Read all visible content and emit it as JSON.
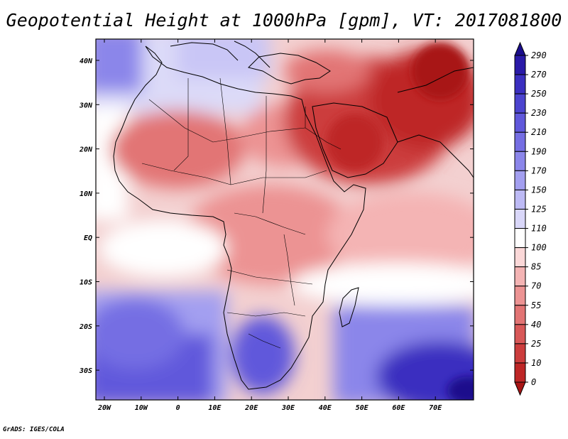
{
  "title": "Geopotential Height at 1000hPa [gpm], VT: 2017081800",
  "credit": "GrADS: IGES/COLA",
  "map": {
    "lon_ticks": [
      "20W",
      "10W",
      "0",
      "10E",
      "20E",
      "30E",
      "40E",
      "50E",
      "60E",
      "70E"
    ],
    "lat_ticks": [
      "40N",
      "30N",
      "20N",
      "10N",
      "EQ",
      "10S",
      "20S",
      "30S"
    ]
  },
  "colorbar": {
    "labels": [
      "290",
      "270",
      "250",
      "230",
      "210",
      "190",
      "170",
      "150",
      "125",
      "110",
      "100",
      "85",
      "70",
      "55",
      "40",
      "25",
      "10",
      "0"
    ],
    "colors": [
      "#2a1aa8",
      "#3b2fc0",
      "#4c44cf",
      "#6058db",
      "#756ee3",
      "#8b86ea",
      "#a39ff0",
      "#bdbaf5",
      "#d9d7f9",
      "#ffffff",
      "#fbd8d8",
      "#f4b4b4",
      "#ec9393",
      "#e27474",
      "#d85858",
      "#cc3d3d",
      "#be2626"
    ],
    "bottom_color": "#a81515",
    "top_color": "#1a0d8c"
  }
}
